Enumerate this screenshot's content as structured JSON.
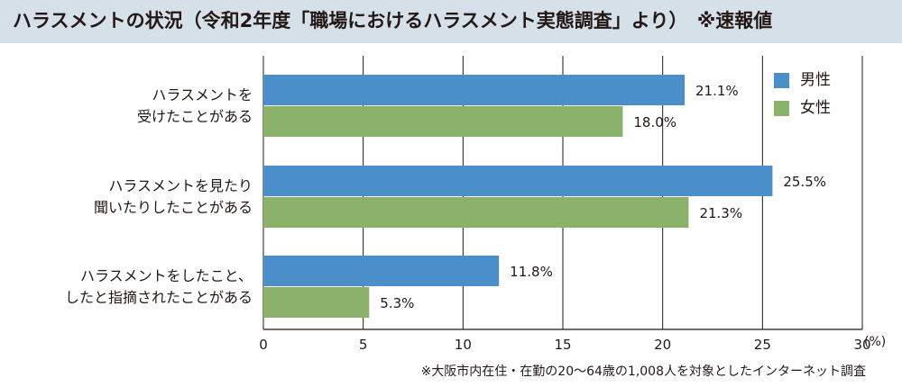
{
  "title": "ハラスメントの状況（令和2年度「職場におけるハラスメント実態調査」より）　※速報値",
  "chart_data": {
    "type": "bar",
    "orientation": "horizontal",
    "categories": [
      [
        "ハラスメントを",
        "受けたことがある"
      ],
      [
        "ハラスメントを見たり",
        "聞いたりしたことがある"
      ],
      [
        "ハラスメントをしたこと、",
        "したと指摘されたことがある"
      ]
    ],
    "series": [
      {
        "name": "男性",
        "color": "#4a8fc9",
        "values": [
          21.1,
          25.5,
          11.8
        ],
        "labels": [
          "21.1%",
          "25.5%",
          "11.8%"
        ]
      },
      {
        "name": "女性",
        "color": "#8ab26a",
        "values": [
          18.0,
          21.3,
          5.3
        ],
        "labels": [
          "18.0%",
          "21.3%",
          "5.3%"
        ]
      }
    ],
    "xlim": [
      0,
      30
    ],
    "xticks": [
      "0",
      "5",
      "10",
      "15",
      "20",
      "25",
      "30"
    ],
    "xunit": "(%)",
    "grid": true,
    "legend": "top-right"
  },
  "footnote": "※大阪市内在住・在勤の20〜64歳の1,008人を対象としたインターネット調査"
}
